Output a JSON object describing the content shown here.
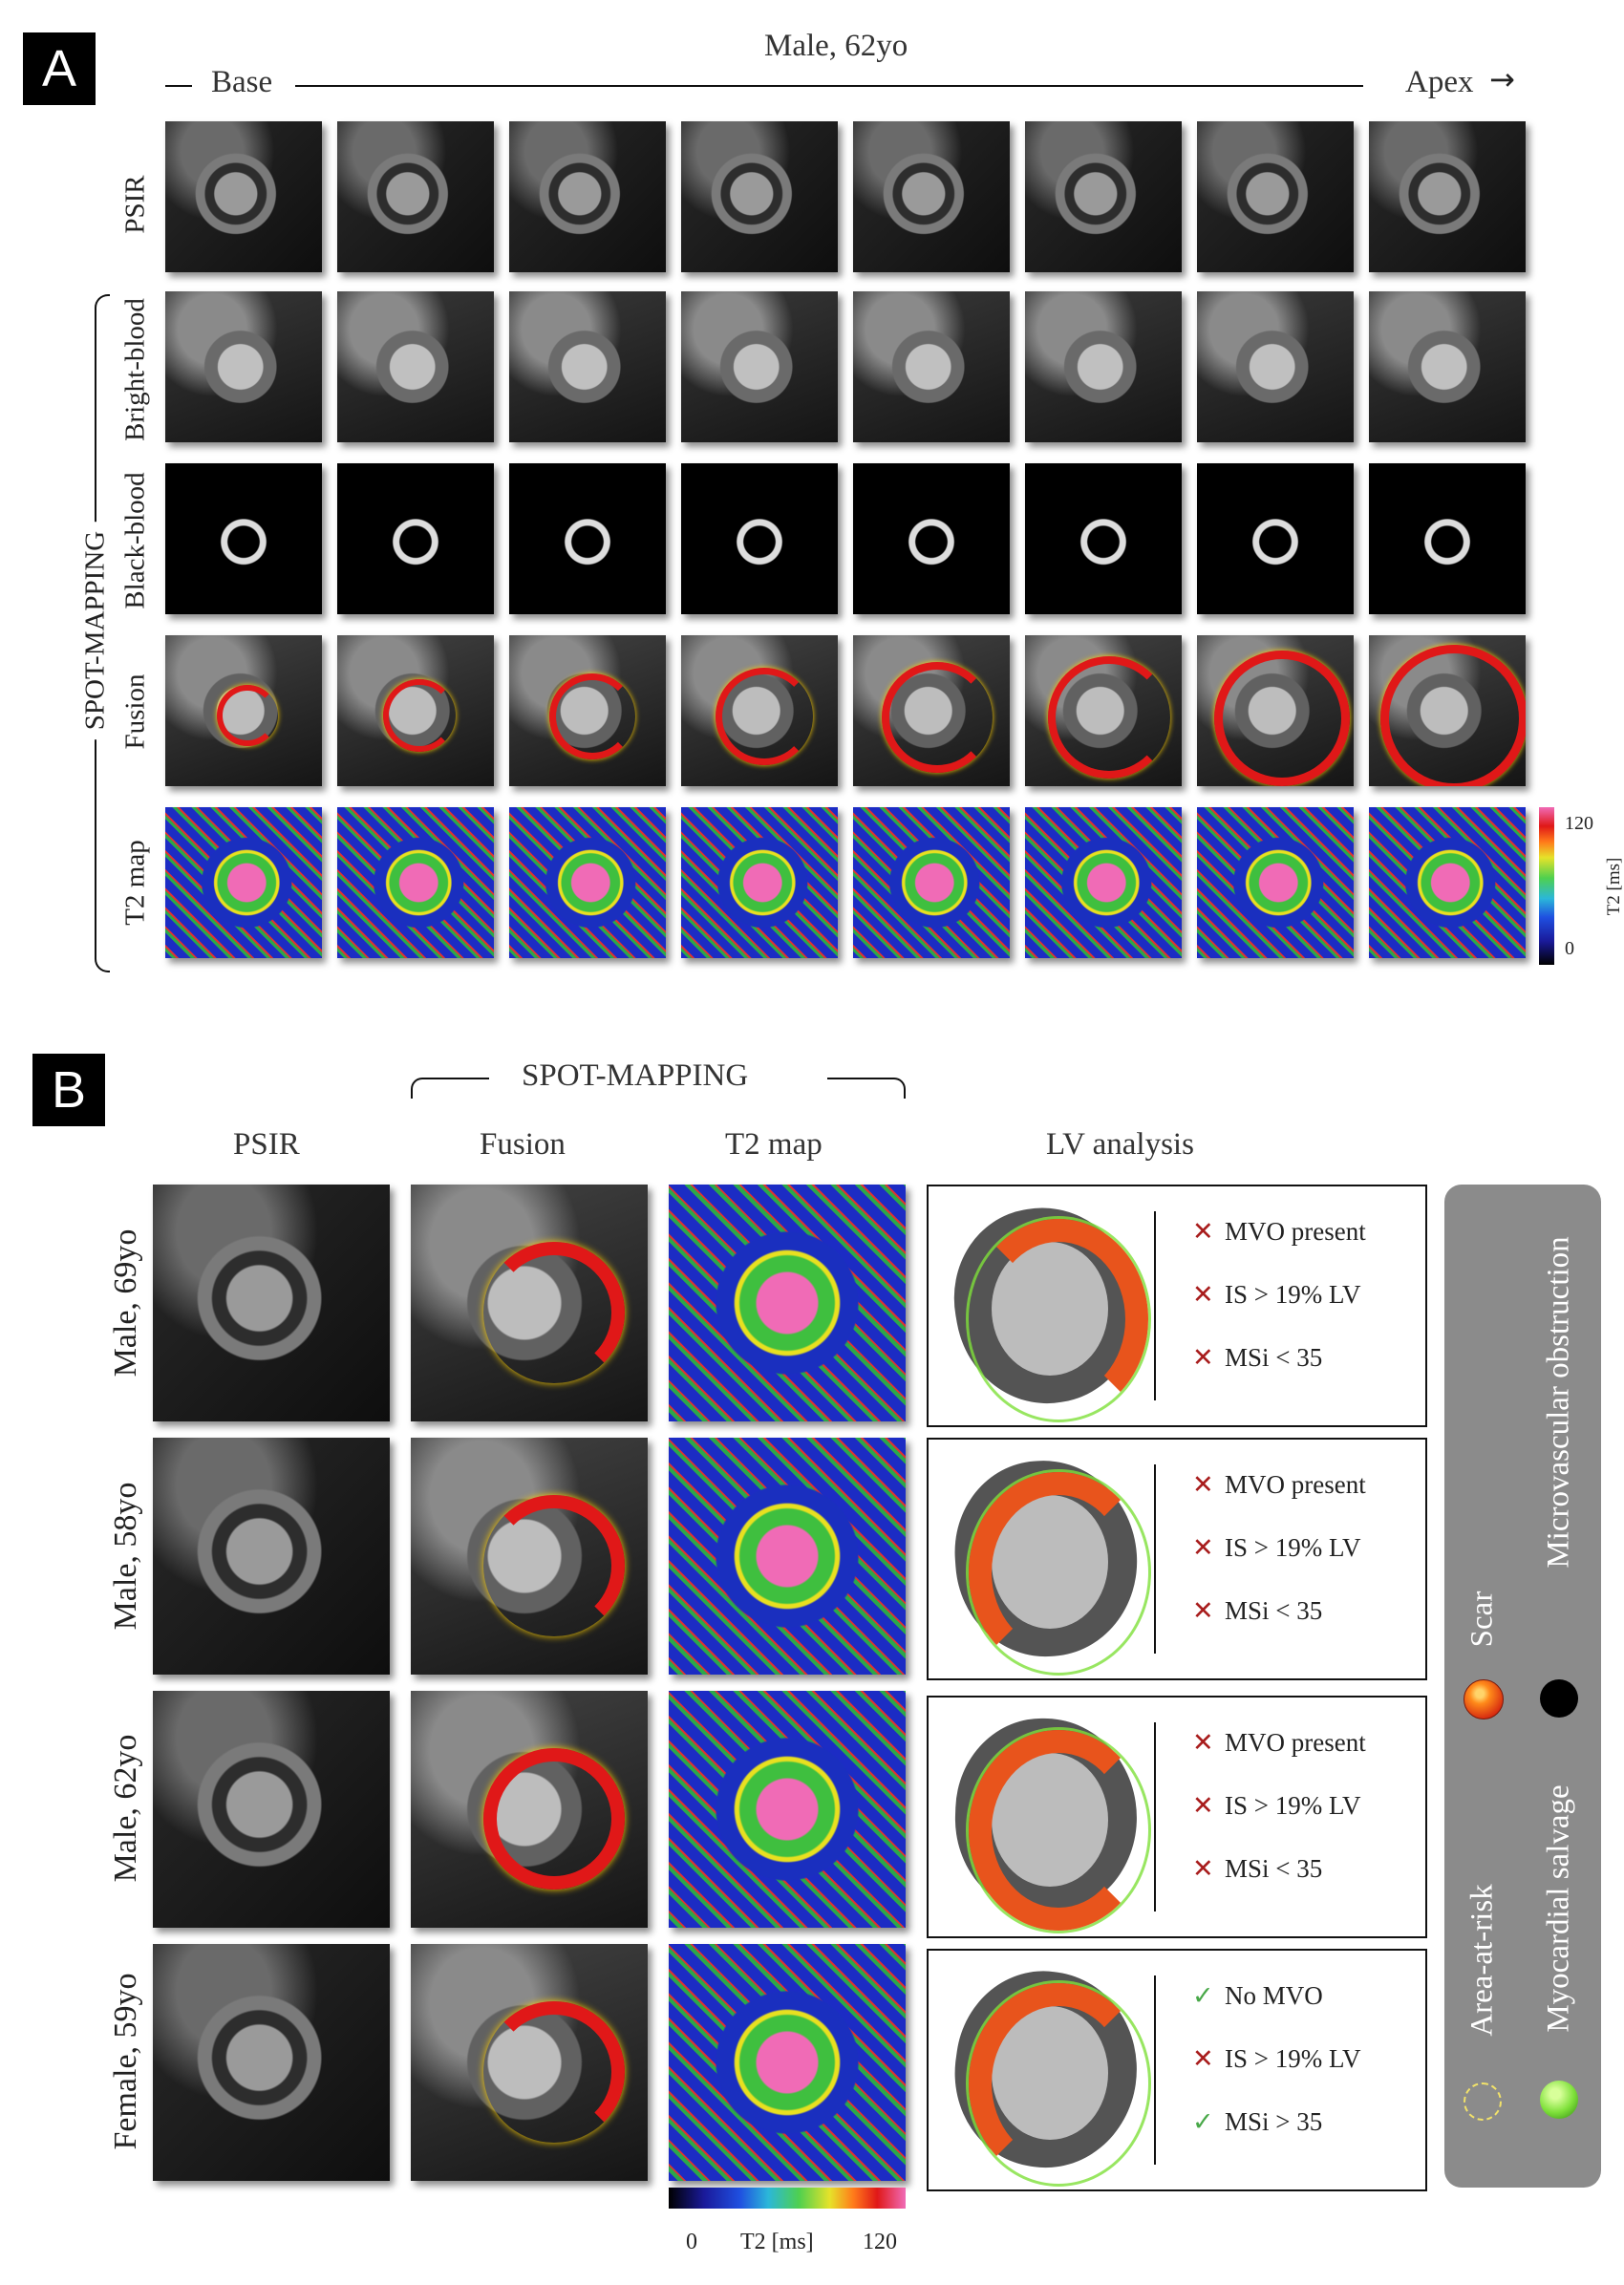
{
  "panel_a": {
    "tag": "A",
    "subject": "Male, 62yo",
    "base_label": "Base",
    "apex_label": "Apex",
    "rows": [
      "PSIR",
      "Bright-blood",
      "Black-blood",
      "Fusion",
      "T2 map"
    ],
    "group_label": "SPOT-MAPPING",
    "colorbar": {
      "max": "120",
      "min": "0",
      "unit": "T2 [ms]"
    }
  },
  "panel_b": {
    "tag": "B",
    "group_label": "SPOT-MAPPING",
    "columns": [
      "PSIR",
      "Fusion",
      "T2 map",
      "LV analysis"
    ],
    "cases": [
      {
        "label": "Male, 69yo",
        "items": [
          {
            "mark": "cross",
            "text": "MVO present"
          },
          {
            "mark": "cross",
            "text": "IS > 19% LV"
          },
          {
            "mark": "cross",
            "text": "MSi < 35"
          }
        ]
      },
      {
        "label": "Male, 58yo",
        "items": [
          {
            "mark": "cross",
            "text": "MVO present"
          },
          {
            "mark": "cross",
            "text": "IS > 19% LV"
          },
          {
            "mark": "cross",
            "text": "MSi < 35"
          }
        ]
      },
      {
        "label": "Male, 62yo",
        "items": [
          {
            "mark": "cross",
            "text": "MVO present"
          },
          {
            "mark": "cross",
            "text": "IS > 19% LV"
          },
          {
            "mark": "cross",
            "text": "MSi < 35"
          }
        ]
      },
      {
        "label": "Female, 59yo",
        "items": [
          {
            "mark": "check",
            "text": "No MVO"
          },
          {
            "mark": "cross",
            "text": "IS > 19% LV"
          },
          {
            "mark": "check",
            "text": "MSi > 35"
          }
        ]
      }
    ],
    "colorbar": {
      "min": "0",
      "unit": "T2 [ms]",
      "max": "120"
    },
    "legend": {
      "scar": "Scar",
      "mvo": "Microvascular obstruction",
      "aar": "Area-at-risk",
      "salvage": "Myocardial salvage"
    }
  },
  "symbols": {
    "cross": "✕",
    "check": "✓"
  },
  "colors": {
    "scar": "#e8541c",
    "mvo": "#000000",
    "salvage": "#7ee03a",
    "aar": "#e8d43a",
    "t2_low": "#000000",
    "t2_high": "#f06bb6",
    "cross": "#a81c1c",
    "check": "#48a848",
    "legend_bg": "#8b8b8b"
  }
}
